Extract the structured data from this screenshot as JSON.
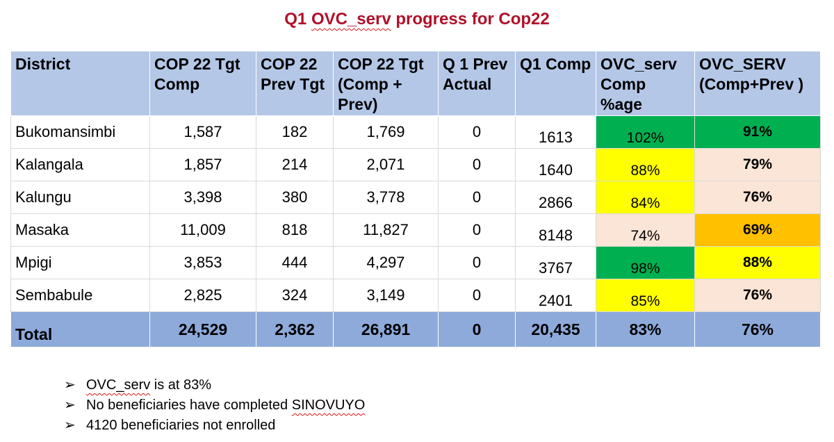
{
  "title": {
    "prefix": "Q1 ",
    "marked": "OVC_serv",
    "suffix": " progress for Cop22"
  },
  "table": {
    "headers": [
      "District",
      "COP 22 Tgt Comp",
      "COP 22 Prev Tgt",
      "COP 22 Tgt (Comp + Prev)",
      "Q 1 Prev Actual",
      "Q1 Comp",
      "OVC_serv Comp %age",
      "OVC_SERV (Comp+Prev )"
    ],
    "rows": [
      {
        "district": "Bukomansimbi",
        "tgt_comp": "1,587",
        "prev_tgt": "182",
        "tgt_total": "1,769",
        "prev_actual": "0",
        "q1_comp": "1613",
        "comp_pct": "102%",
        "comp_color": "#00b050",
        "total_pct": "91%",
        "total_color": "#00b050"
      },
      {
        "district": "Kalangala",
        "tgt_comp": "1,857",
        "prev_tgt": "214",
        "tgt_total": "2,071",
        "prev_actual": "0",
        "q1_comp": "1640",
        "comp_pct": "88%",
        "comp_color": "#ffff00",
        "total_pct": "79%",
        "total_color": "#fbe5d6"
      },
      {
        "district": "Kalungu",
        "tgt_comp": "3,398",
        "prev_tgt": "380",
        "tgt_total": "3,778",
        "prev_actual": "0",
        "q1_comp": "2866",
        "comp_pct": "84%",
        "comp_color": "#ffff00",
        "total_pct": "76%",
        "total_color": "#fbe5d6"
      },
      {
        "district": "Masaka",
        "tgt_comp": "11,009",
        "prev_tgt": "818",
        "tgt_total": "11,827",
        "prev_actual": "0",
        "q1_comp": "8148",
        "comp_pct": "74%",
        "comp_color": "#fbe5d6",
        "total_pct": "69%",
        "total_color": "#ffc000"
      },
      {
        "district": "Mpigi",
        "tgt_comp": "3,853",
        "prev_tgt": "444",
        "tgt_total": "4,297",
        "prev_actual": "0",
        "q1_comp": "3767",
        "comp_pct": "98%",
        "comp_color": "#00b050",
        "total_pct": "88%",
        "total_color": "#ffff00"
      },
      {
        "district": "Sembabule",
        "tgt_comp": "2,825",
        "prev_tgt": "324",
        "tgt_total": "3,149",
        "prev_actual": "0",
        "q1_comp": "2401",
        "comp_pct": "85%",
        "comp_color": "#ffff00",
        "total_pct": "76%",
        "total_color": "#fbe5d6"
      }
    ],
    "total": {
      "label": "Total",
      "tgt_comp": "24,529",
      "prev_tgt": "2,362",
      "tgt_total": "26,891",
      "prev_actual": "0",
      "q1_comp": "20,435",
      "comp_pct": "83%",
      "total_pct": "76%"
    }
  },
  "bullets": {
    "marker": "➢",
    "b1_marked": "OVC_serv",
    "b1_rest": " is at 83%",
    "b2_text": "No beneficiaries have completed ",
    "b2_marked": "SINOVUYO",
    "b3_text": "4120 beneficiaries not enrolled"
  }
}
